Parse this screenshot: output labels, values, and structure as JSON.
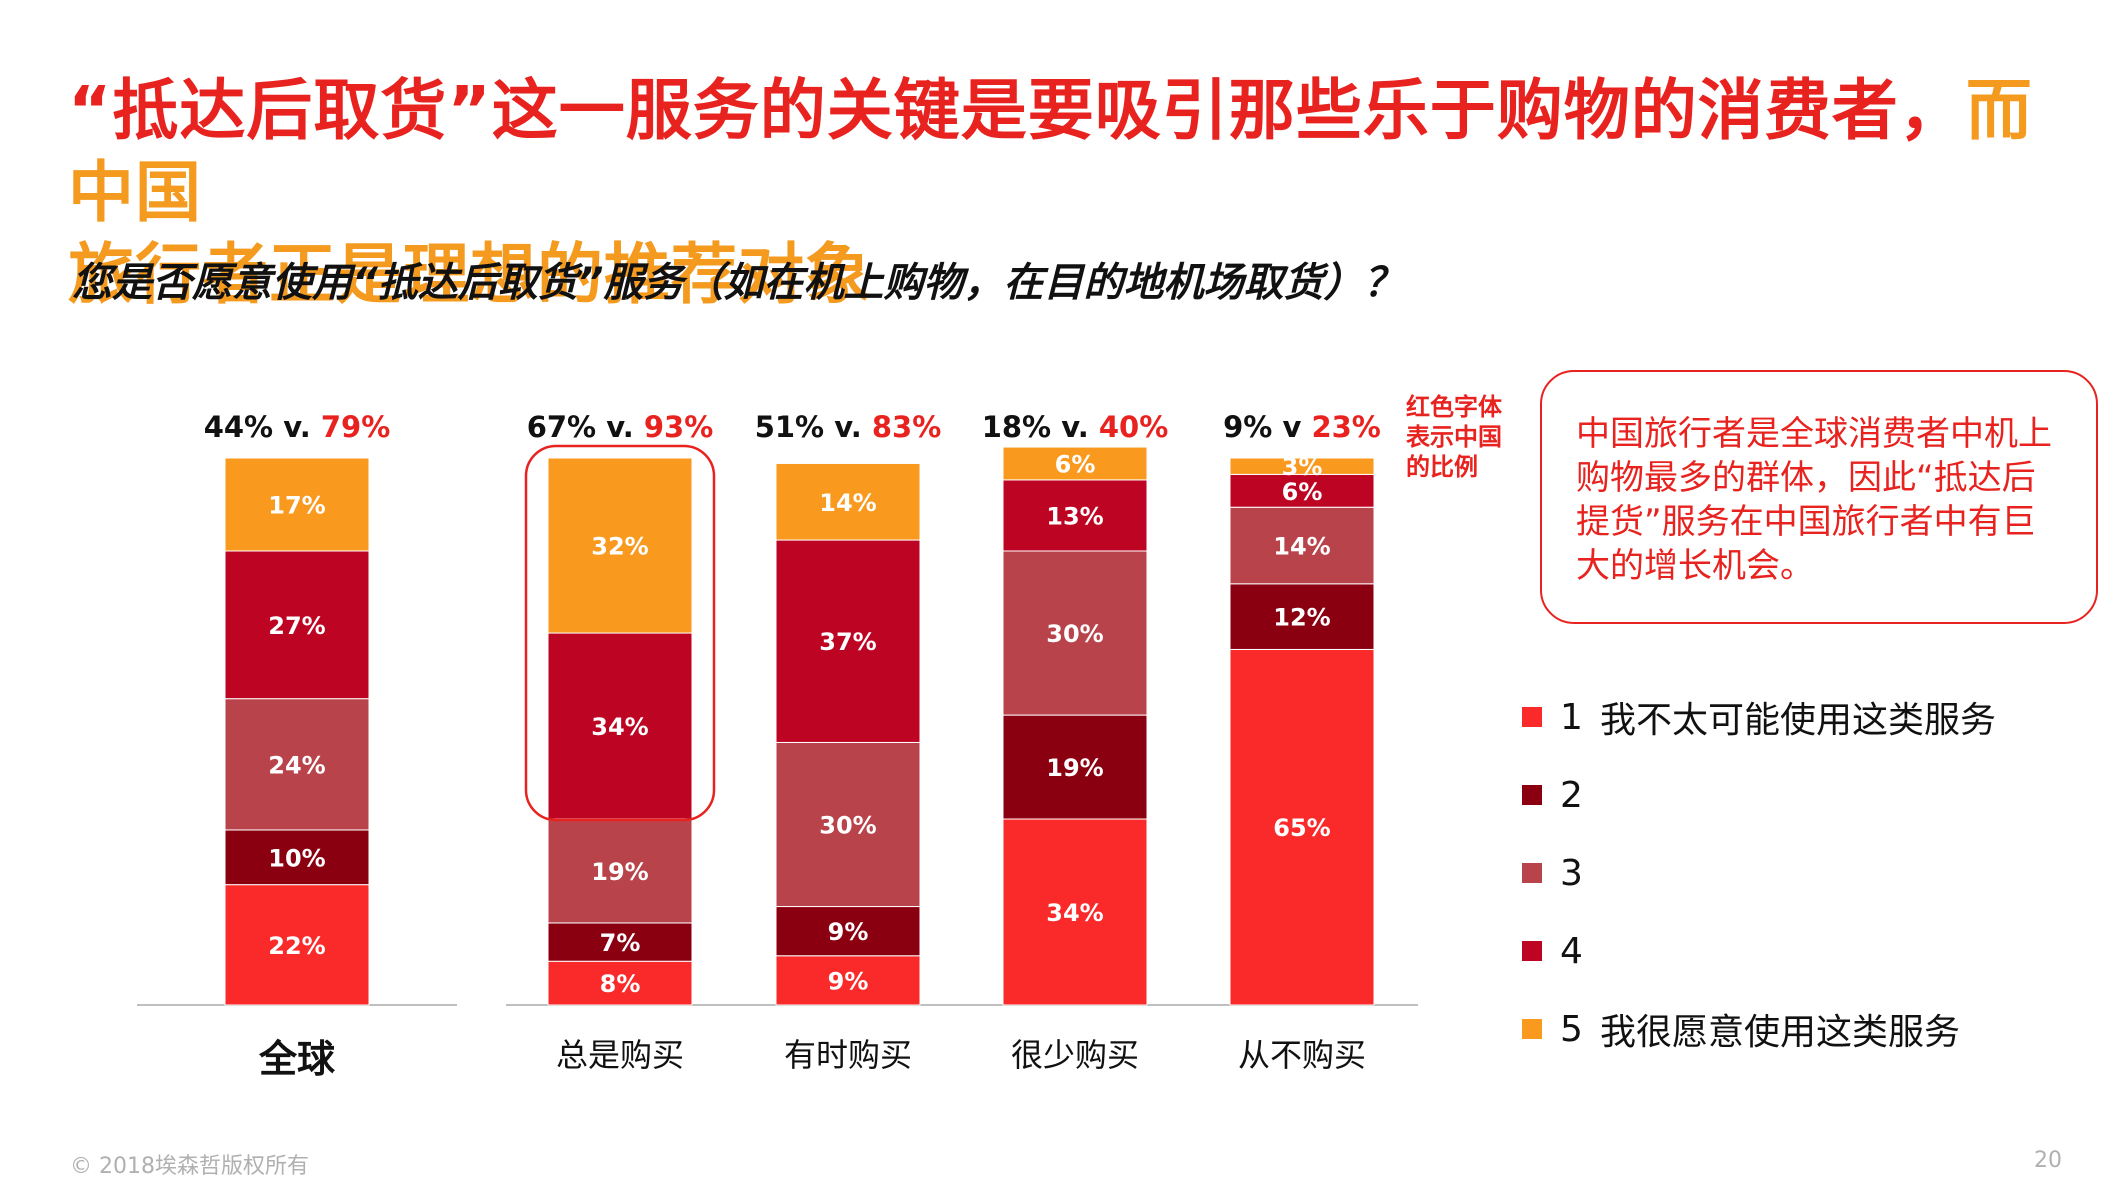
{
  "title": {
    "part1": "“抵达后取货”这一服务的关键是要吸引那些乐于购物的消费者，",
    "part2": "而中国",
    "part3": "旅行者正是理想的推荐对象"
  },
  "subtitle": "您是否愿意使用“抵达后取货”服务（如在机上购物，在目的地机场取货）？",
  "note": "红色字体表示中国的比例",
  "callout": "中国旅行者是全球消费者中机上购物最多的群体，因此“抵达后提货”服务在中国旅行者中有巨大的增长机会。",
  "colors": {
    "s1": "#fb2a2a",
    "s2": "#8b0011",
    "s3": "#b8434a",
    "s4": "#bd0423",
    "s5": "#f99a1e",
    "highlight": "#e8231f"
  },
  "legend": [
    {
      "num": "1",
      "text": "我不太可能使用这类服务"
    },
    {
      "num": "2",
      "text": ""
    },
    {
      "num": "3",
      "text": ""
    },
    {
      "num": "4",
      "text": ""
    },
    {
      "num": "5",
      "text": "我很愿意使用这类服务"
    }
  ],
  "chart_data": {
    "type": "bar",
    "stacked": true,
    "title": "您是否愿意使用“抵达后取货”服务（如在机上购物，在目的地机场取货）？",
    "categories": [
      "全球",
      "总是购买",
      "有时购买",
      "很少购买",
      "从不购买"
    ],
    "series": [
      {
        "name": "1 我不太可能使用这类服务",
        "values": [
          22,
          8,
          9,
          34,
          65
        ]
      },
      {
        "name": "2",
        "values": [
          10,
          7,
          9,
          19,
          12
        ]
      },
      {
        "name": "3",
        "values": [
          24,
          19,
          30,
          30,
          14
        ]
      },
      {
        "name": "4",
        "values": [
          27,
          34,
          37,
          13,
          6
        ]
      },
      {
        "name": "5 我很愿意使用这类服务",
        "values": [
          17,
          32,
          14,
          6,
          3
        ]
      }
    ],
    "comparisons": [
      {
        "base": "44% v.",
        "china": "79%"
      },
      {
        "base": "67% v.",
        "china": "93%"
      },
      {
        "base": "51% v.",
        "china": "83%"
      },
      {
        "base": "18% v.",
        "china": "40%"
      },
      {
        "base": "9% v",
        "china": "23%"
      }
    ],
    "highlighted_category": "总是购买",
    "ylim": [
      0,
      100
    ]
  },
  "footer": {
    "copyright": "© 2018埃森哲版权所有",
    "page": "20"
  }
}
